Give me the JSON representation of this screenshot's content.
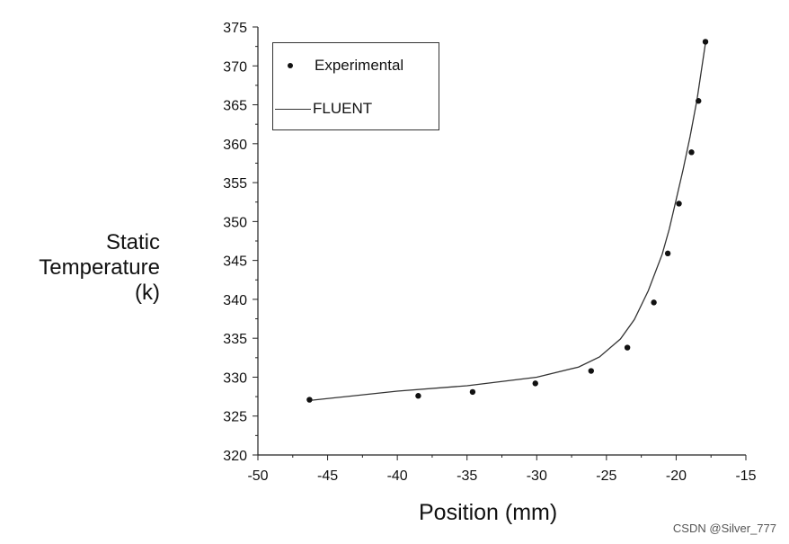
{
  "chart_data": {
    "type": "scatter",
    "xlabel": "Position (mm)",
    "ylabel_lines": [
      "Static",
      "Temperature",
      "(k)"
    ],
    "xlim": [
      -50,
      -15
    ],
    "ylim": [
      320,
      375
    ],
    "xticks": [
      -50,
      -45,
      -40,
      -35,
      -30,
      -25,
      -20,
      -15
    ],
    "yticks": [
      320,
      325,
      330,
      335,
      340,
      345,
      350,
      355,
      360,
      365,
      370,
      375
    ],
    "grid": false,
    "legend_position": "top-left",
    "series": [
      {
        "name": "Experimental",
        "kind": "scatter",
        "color": "#111111",
        "x": [
          -46.3,
          -38.5,
          -34.6,
          -30.1,
          -26.1,
          -23.5,
          -21.6,
          -20.6,
          -19.8,
          -18.9,
          -18.4,
          -17.9
        ],
        "y": [
          327.1,
          327.6,
          328.1,
          329.2,
          330.8,
          333.8,
          339.6,
          345.9,
          352.3,
          358.9,
          365.5,
          373.1
        ]
      },
      {
        "name": "FLUENT",
        "kind": "line",
        "color": "#333333",
        "x": [
          -46.3,
          -40,
          -35,
          -30,
          -27,
          -25.5,
          -24,
          -23,
          -22,
          -21,
          -20.5,
          -20,
          -19.5,
          -19,
          -18.5,
          -17.9
        ],
        "y": [
          327.0,
          328.2,
          328.9,
          330.0,
          331.3,
          332.6,
          334.9,
          337.4,
          341.1,
          345.8,
          349.0,
          352.8,
          356.7,
          360.9,
          365.7,
          372.9
        ]
      }
    ]
  },
  "watermark": "CSDN @Silver_777"
}
